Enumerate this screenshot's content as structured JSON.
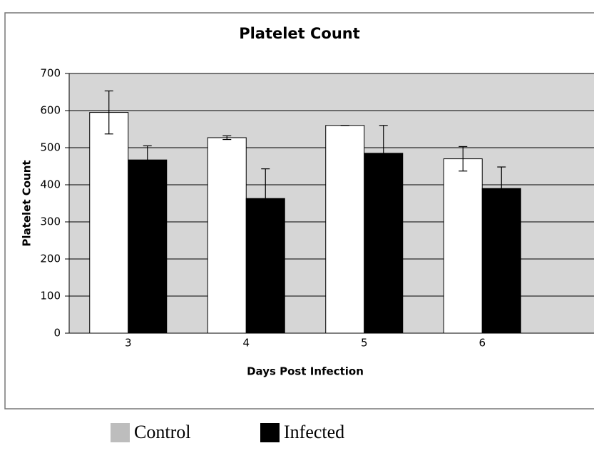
{
  "chart_data": {
    "type": "bar",
    "title": "Platelet Count",
    "x_label": "Days Post Infection",
    "y_label": "Platelet Count",
    "categories": [
      "3",
      "4",
      "5",
      "6"
    ],
    "series": [
      {
        "name": "Control",
        "color": "#ffffff",
        "values": [
          595,
          527,
          560,
          470
        ],
        "errors": [
          58,
          5,
          0,
          33
        ]
      },
      {
        "name": "Infected",
        "color": "#000000",
        "values": [
          467,
          363,
          485,
          390
        ],
        "errors": [
          38,
          80,
          75,
          58
        ]
      }
    ],
    "ylim": [
      0,
      700
    ],
    "yticks": [
      0,
      100,
      200,
      300,
      400,
      500,
      600,
      700
    ],
    "grid": true
  }
}
